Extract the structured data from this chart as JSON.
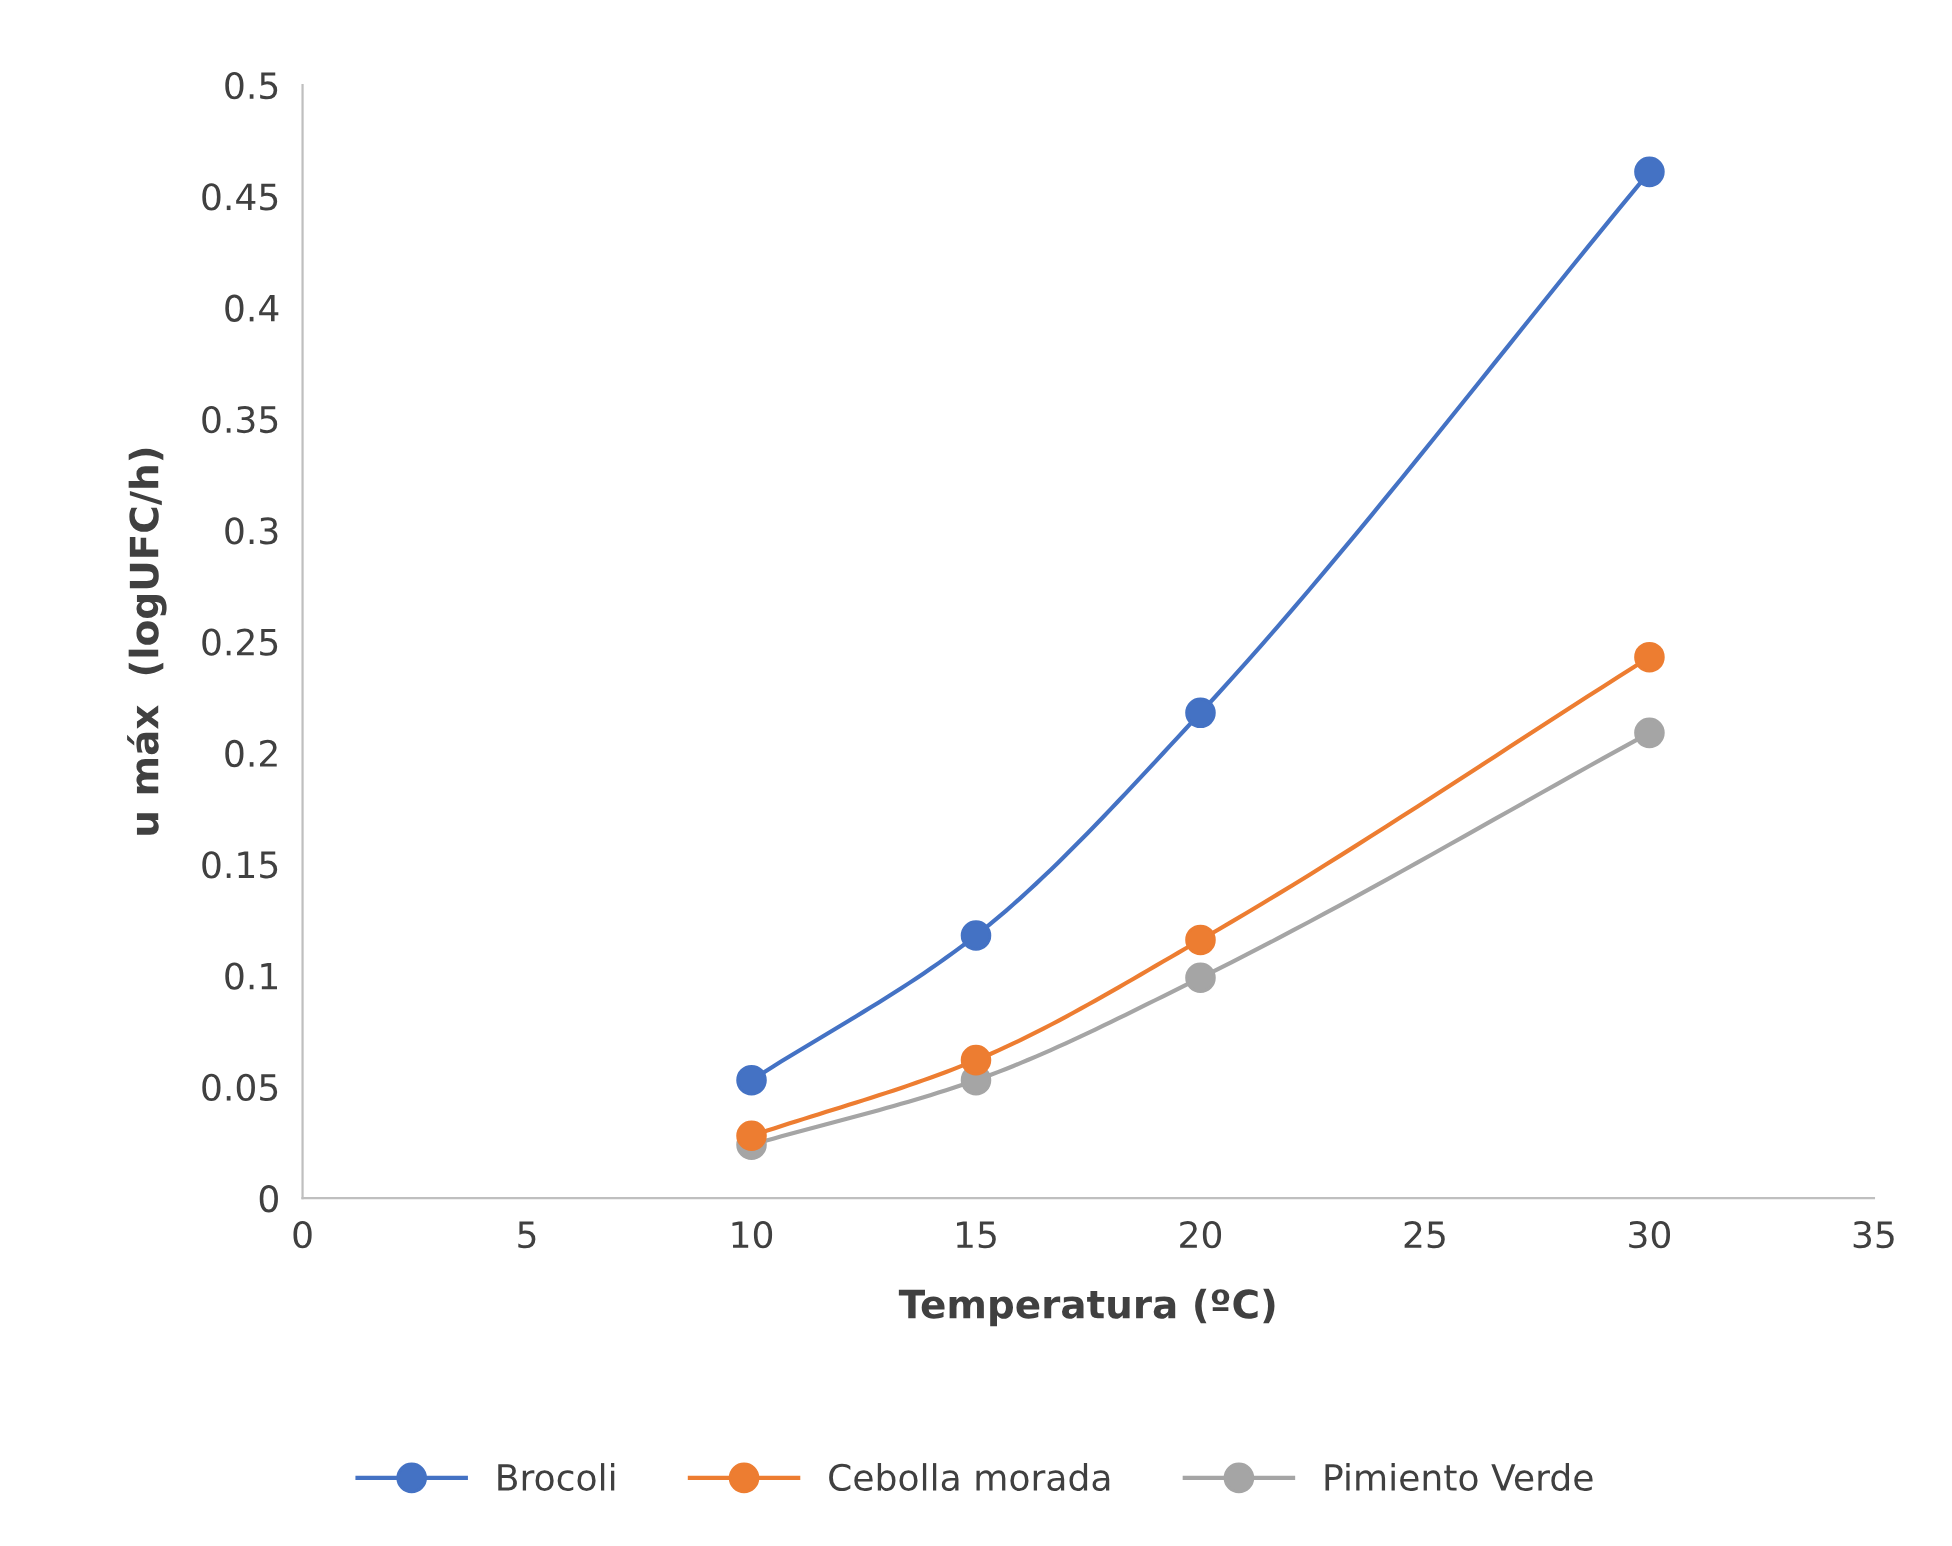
{
  "chart_data": {
    "type": "line",
    "xlabel": "Temperatura (ºC)",
    "ylabel": "u máx  (logUFC/h)",
    "x": [
      10,
      15,
      20,
      30
    ],
    "series": [
      {
        "name": "Brocoli",
        "color": "#4472c4",
        "values": [
          0.053,
          0.118,
          0.218,
          0.461
        ]
      },
      {
        "name": "Cebolla morada",
        "color": "#ed7d31",
        "values": [
          0.028,
          0.062,
          0.116,
          0.243
        ]
      },
      {
        "name": "Pimiento Verde",
        "color": "#a5a5a5",
        "values": [
          0.024,
          0.053,
          0.099,
          0.209
        ]
      }
    ],
    "xlim": [
      0,
      35
    ],
    "xticks": [
      0,
      5,
      10,
      15,
      20,
      25,
      30,
      35
    ],
    "ylim": [
      0,
      0.5
    ],
    "yticks": [
      0,
      0.05,
      0.1,
      0.15,
      0.2,
      0.25,
      0.3,
      0.35,
      0.4,
      0.45,
      0.5
    ],
    "grid": false,
    "legend": "bottom",
    "marker": "circle",
    "line_style": "solid"
  }
}
